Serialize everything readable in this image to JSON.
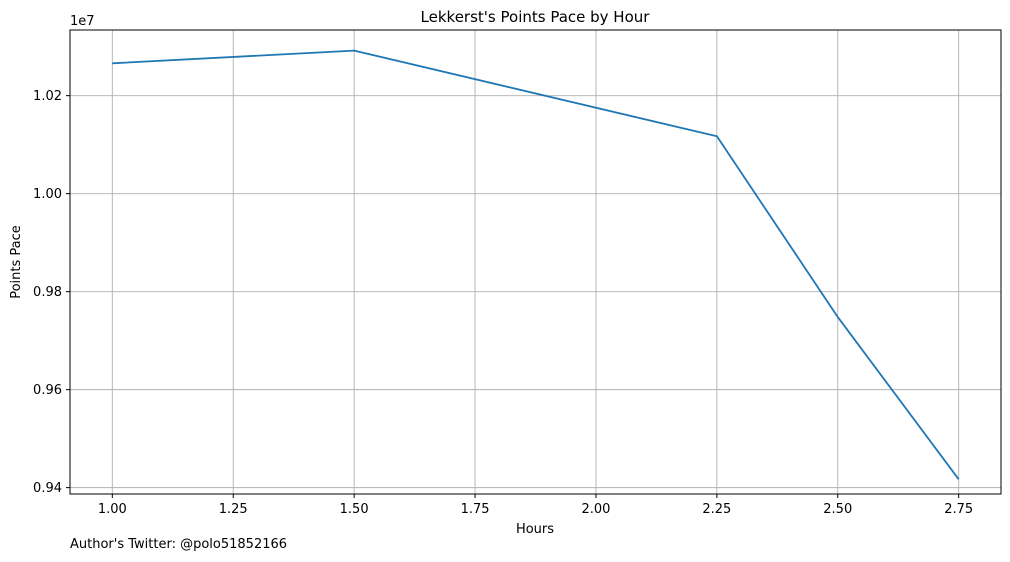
{
  "chart_data": {
    "type": "line",
    "title": "Lekkerst's Points Pace by Hour",
    "xlabel": "Hours",
    "ylabel": "Points Pace",
    "y_offset_label": "1e7",
    "xlim": [
      0.9125,
      2.8375
    ],
    "ylim": [
      0.9387,
      1.0334
    ],
    "grid": true,
    "x_ticks": [
      1.0,
      1.25,
      1.5,
      1.75,
      2.0,
      2.25,
      2.5,
      2.75
    ],
    "x_tick_labels": [
      "1.00",
      "1.25",
      "1.50",
      "1.75",
      "2.00",
      "2.25",
      "2.50",
      "2.75"
    ],
    "y_ticks": [
      0.94,
      0.96,
      0.98,
      1.0,
      1.02
    ],
    "y_tick_labels": [
      "0.94",
      "0.96",
      "0.98",
      "1.00",
      "1.02"
    ],
    "series": [
      {
        "color": "#1f77b4",
        "x": [
          1.0,
          1.5,
          2.25,
          2.5,
          2.75
        ],
        "y": [
          1.0266,
          1.0292,
          1.0117,
          0.9748,
          0.9417
        ]
      }
    ]
  },
  "footer": {
    "text": "Author's Twitter: @polo51852166"
  }
}
